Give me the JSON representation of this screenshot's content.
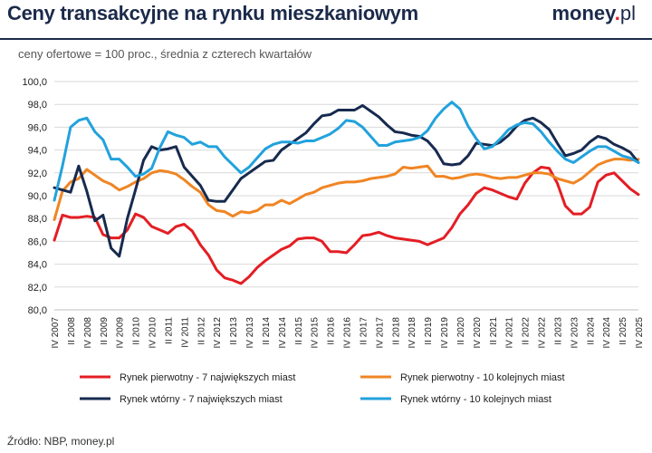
{
  "header": {
    "title": "Ceny transakcyjne na rynku mieszkaniowym",
    "brand_main": "money",
    "brand_dot": ".",
    "brand_suffix": "pl"
  },
  "subtitle": "ceny ofertowe = 100 proc., średnia z czterech kwartałów",
  "source": "Źródło: NBP, money.pl",
  "chart_data": {
    "type": "line",
    "ylim": [
      80,
      100
    ],
    "yticks": [
      "100,0",
      "98,0",
      "96,0",
      "94,0",
      "92,0",
      "90,0",
      "88,0",
      "86,0",
      "84,0",
      "82,0",
      "80,0"
    ],
    "grid": true,
    "legend_position": "bottom",
    "x": [
      "IV 2007",
      "I 2008",
      "II 2008",
      "III 2008",
      "IV 2008",
      "I 2009",
      "II 2009",
      "III 2009",
      "IV 2009",
      "I 2010",
      "II 2010",
      "III 2010",
      "IV 2010",
      "I 2011",
      "II 2011",
      "III 2011",
      "IV 2011",
      "I 2012",
      "II 2012",
      "III 2012",
      "IV 2012",
      "I 2013",
      "II 2013",
      "III 2013",
      "IV 2013",
      "I 2014",
      "II 2014",
      "III 2014",
      "IV 2014",
      "I 2015",
      "II 2015",
      "III 2015",
      "IV 2015",
      "I 2016",
      "II 2016",
      "III 2016",
      "IV 2016",
      "I 2017",
      "II 2017",
      "III 2017",
      "IV 2017",
      "I 2018",
      "II 2018",
      "III 2018",
      "IV 2018",
      "I 2019",
      "II 2019",
      "III 2019",
      "IV 2019",
      "I 2020",
      "II 2020",
      "III 2020",
      "IV 2020",
      "I 2021",
      "II 2021",
      "III 2021",
      "IV 2021",
      "I 2022",
      "II 2022",
      "III 2022",
      "IV 2022",
      "I 2023",
      "II 2023",
      "III 2023",
      "IV 2023",
      "I 2024",
      "II 2024",
      "III 2024",
      "IV 2024",
      "I 2025",
      "II 2025",
      "III 2025",
      "IV 2025"
    ],
    "xtick_labels": [
      "IV 2007",
      "II 2008",
      "IV 2008",
      "II 2009",
      "IV 2009",
      "II 2010",
      "IV 2010",
      "II 2011",
      "IV 2011",
      "II 2012",
      "IV 2012",
      "II 2013",
      "IV 2013",
      "II 2014",
      "IV 2014",
      "II 2015",
      "IV 2015",
      "II 2016",
      "IV 2016",
      "II 2017",
      "IV 2017",
      "II 2018",
      "IV 2018",
      "II 2019",
      "IV 2019",
      "II 2020",
      "IV 2020",
      "II 2021",
      "IV 2021",
      "II 2022",
      "IV 2022",
      "II 2023",
      "IV 2023",
      "II 2024",
      "IV 2024",
      "II 2025",
      "IV 2025"
    ],
    "series": [
      {
        "name": "Rynek pierwotny - 7 największych miast",
        "color": "#e31e24",
        "values": [
          86.1,
          88.3,
          88.1,
          88.1,
          88.2,
          88.1,
          86.6,
          86.3,
          86.3,
          87.0,
          88.4,
          88.1,
          87.3,
          87.0,
          86.7,
          87.3,
          87.5,
          86.9,
          85.7,
          84.8,
          83.5,
          82.8,
          82.6,
          82.3,
          82.9,
          83.7,
          84.3,
          84.8,
          85.3,
          85.6,
          86.2,
          86.3,
          86.3,
          86.0,
          85.1,
          85.1,
          85.0,
          85.7,
          86.5,
          86.6,
          86.8,
          86.5,
          86.3,
          86.2,
          86.1,
          86.0,
          85.7,
          86.0,
          86.3,
          87.2,
          88.4,
          89.2,
          90.2,
          90.7,
          90.5,
          90.2,
          89.9,
          89.7,
          91.1,
          92.0,
          92.5,
          92.4,
          91.1,
          89.1,
          88.4,
          88.4,
          89.0,
          91.2,
          91.8,
          92.0,
          91.3,
          90.6,
          90.1
        ]
      },
      {
        "name": "Rynek pierwotny - 10 kolejnych miast",
        "color": "#f08523",
        "values": [
          87.9,
          90.4,
          91.2,
          91.5,
          92.3,
          91.8,
          91.3,
          91.0,
          90.5,
          90.8,
          91.2,
          91.5,
          92.0,
          92.2,
          92.1,
          91.9,
          91.4,
          90.8,
          90.3,
          89.2,
          88.7,
          88.6,
          88.2,
          88.6,
          88.5,
          88.7,
          89.2,
          89.2,
          89.6,
          89.3,
          89.7,
          90.1,
          90.3,
          90.7,
          90.9,
          91.1,
          91.2,
          91.2,
          91.3,
          91.5,
          91.6,
          91.7,
          91.9,
          92.5,
          92.4,
          92.5,
          92.6,
          91.7,
          91.7,
          91.5,
          91.6,
          91.8,
          91.9,
          91.8,
          91.6,
          91.5,
          91.6,
          91.6,
          91.8,
          92.0,
          92.0,
          91.9,
          91.5,
          91.3,
          91.1,
          91.5,
          92.1,
          92.7,
          93.0,
          93.2,
          93.2,
          93.1,
          93.2
        ]
      },
      {
        "name": "Rynek wtórny - 7 największych miast",
        "color": "#172a4f",
        "values": [
          90.7,
          90.5,
          90.3,
          92.6,
          90.4,
          87.8,
          88.3,
          85.4,
          84.7,
          88.0,
          90.5,
          93.1,
          94.3,
          94.0,
          94.1,
          94.3,
          92.5,
          91.7,
          90.9,
          89.6,
          89.5,
          89.5,
          90.5,
          91.5,
          92.0,
          92.5,
          93.0,
          93.1,
          94.0,
          94.5,
          95.0,
          95.5,
          96.3,
          97.0,
          97.1,
          97.5,
          97.5,
          97.5,
          97.9,
          97.4,
          96.9,
          96.2,
          95.6,
          95.5,
          95.3,
          95.2,
          94.8,
          94.0,
          92.8,
          92.7,
          92.8,
          93.5,
          94.6,
          94.5,
          94.4,
          94.7,
          95.3,
          96.1,
          96.6,
          96.8,
          96.4,
          95.8,
          94.6,
          93.5,
          93.7,
          94.0,
          94.7,
          95.2,
          95.0,
          94.5,
          94.2,
          93.8,
          92.9
        ]
      },
      {
        "name": "Rynek wtórny -  10 kolejnych miast",
        "color": "#22a2dc",
        "values": [
          89.6,
          92.6,
          96.0,
          96.6,
          96.8,
          95.6,
          94.9,
          93.2,
          93.2,
          92.5,
          91.7,
          91.9,
          92.4,
          94.2,
          95.6,
          95.3,
          95.1,
          94.5,
          94.7,
          94.3,
          94.3,
          93.4,
          92.7,
          92.0,
          92.5,
          93.3,
          94.1,
          94.5,
          94.7,
          94.7,
          94.6,
          94.8,
          94.8,
          95.1,
          95.4,
          95.9,
          96.6,
          96.5,
          96.0,
          95.2,
          94.4,
          94.4,
          94.7,
          94.8,
          94.9,
          95.1,
          95.7,
          96.8,
          97.6,
          98.2,
          97.6,
          96.1,
          95.0,
          94.1,
          94.3,
          95.0,
          95.8,
          96.2,
          96.4,
          96.3,
          95.6,
          94.7,
          93.9,
          93.2,
          92.9,
          93.4,
          93.9,
          94.3,
          94.3,
          93.9,
          93.5,
          93.3,
          92.9
        ]
      }
    ]
  }
}
